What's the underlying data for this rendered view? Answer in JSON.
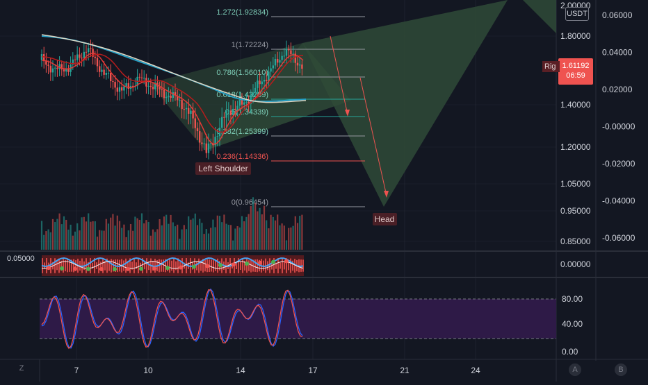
{
  "currency_badge": "USDT",
  "price_badge": {
    "value": "1.61192",
    "countdown": "06:59",
    "label_partial": "Rig"
  },
  "indicator_value": "0.05000",
  "scale_buttons": {
    "log": "Z",
    "auto": "A",
    "bottom_right": "B"
  },
  "colors": {
    "background": "#131722",
    "grid": "#2a2e39",
    "up": "#26a69a",
    "down": "#ef5350",
    "triangle": "#2f4a37",
    "stoch_band": "#2e1a47",
    "stoch_k": "#2962ff",
    "stoch_d": "#ef5350",
    "price_badge": "#ef5350"
  },
  "chart_data": [
    {
      "type": "candlestick",
      "x_tick_labels": [
        "7",
        "10",
        "14",
        "17",
        "21",
        "24"
      ],
      "y_axis_primary": [
        "2.00000",
        "1.80000",
        "1.40000",
        "1.20000",
        "1.05000",
        "0.95000",
        "0.85000"
      ],
      "y_axis_secondary": [
        "0.06000",
        "0.04000",
        "0.02000",
        "-0.00000",
        "-0.02000",
        "-0.04000",
        "-0.06000"
      ],
      "fib_levels": [
        {
          "label": "1.272(1.92834)",
          "ratio": 1.272,
          "price": 1.92834
        },
        {
          "label": "1(1.72224)",
          "ratio": 1.0,
          "price": 1.72224
        },
        {
          "label": "0.786(1.56010)",
          "ratio": 0.786,
          "price": 1.5601
        },
        {
          "label": "0.618(1.43289)",
          "ratio": 0.618,
          "price": 1.43289
        },
        {
          "label": "0.5(1.34339)",
          "ratio": 0.5,
          "price": 1.34339
        },
        {
          "label": "0.382(1.25399)",
          "ratio": 0.382,
          "price": 1.25399
        },
        {
          "label": "0.236(1.14336)",
          "ratio": 0.236,
          "price": 1.14336
        },
        {
          "label": "0(0.96454)",
          "ratio": 0.0,
          "price": 0.96454
        }
      ],
      "annotations": [
        "Left Shoulder",
        "Head"
      ],
      "last_price": 1.61192
    },
    {
      "type": "line",
      "name": "stochastic",
      "y_tick_labels": [
        "80.00",
        "40.00",
        "0.00"
      ],
      "band": [
        20,
        80
      ]
    },
    {
      "type": "bar",
      "name": "oscillator",
      "y_tick_labels": [
        "0.00000"
      ]
    }
  ]
}
